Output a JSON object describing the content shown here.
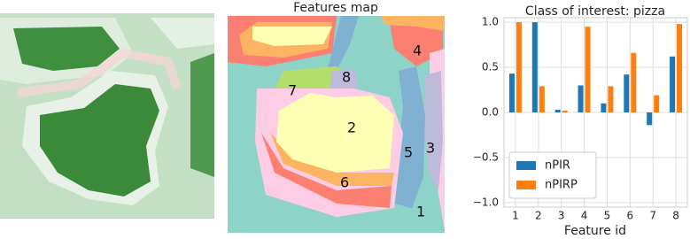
{
  "features_map": {
    "title": "Features map",
    "labels": [
      "1",
      "2",
      "3",
      "4",
      "5",
      "6",
      "7",
      "8"
    ]
  },
  "chart_data": {
    "type": "bar",
    "title": "Class of interest: pizza",
    "xlabel": "Feature id",
    "categories": [
      "1",
      "2",
      "3",
      "4",
      "5",
      "6",
      "7",
      "8"
    ],
    "series": [
      {
        "name": "nPIR",
        "color": "#1f77b4",
        "values": [
          0.43,
          1.0,
          0.03,
          0.3,
          0.1,
          0.42,
          -0.14,
          0.62
        ]
      },
      {
        "name": "nPIRP",
        "color": "#ff7f0e",
        "values": [
          1.0,
          0.29,
          0.02,
          0.95,
          0.29,
          0.66,
          0.19,
          0.98
        ]
      }
    ],
    "ylim": [
      -1.05,
      1.05
    ],
    "yticks": [
      {
        "value": -1,
        "label": "−1.0"
      },
      {
        "value": -0.5,
        "label": "−0.5"
      },
      {
        "value": 0,
        "label": "0.0"
      },
      {
        "value": 0.5,
        "label": "0.5"
      },
      {
        "value": 1,
        "label": "1.0"
      }
    ],
    "grid": true,
    "legend": "lower left"
  }
}
